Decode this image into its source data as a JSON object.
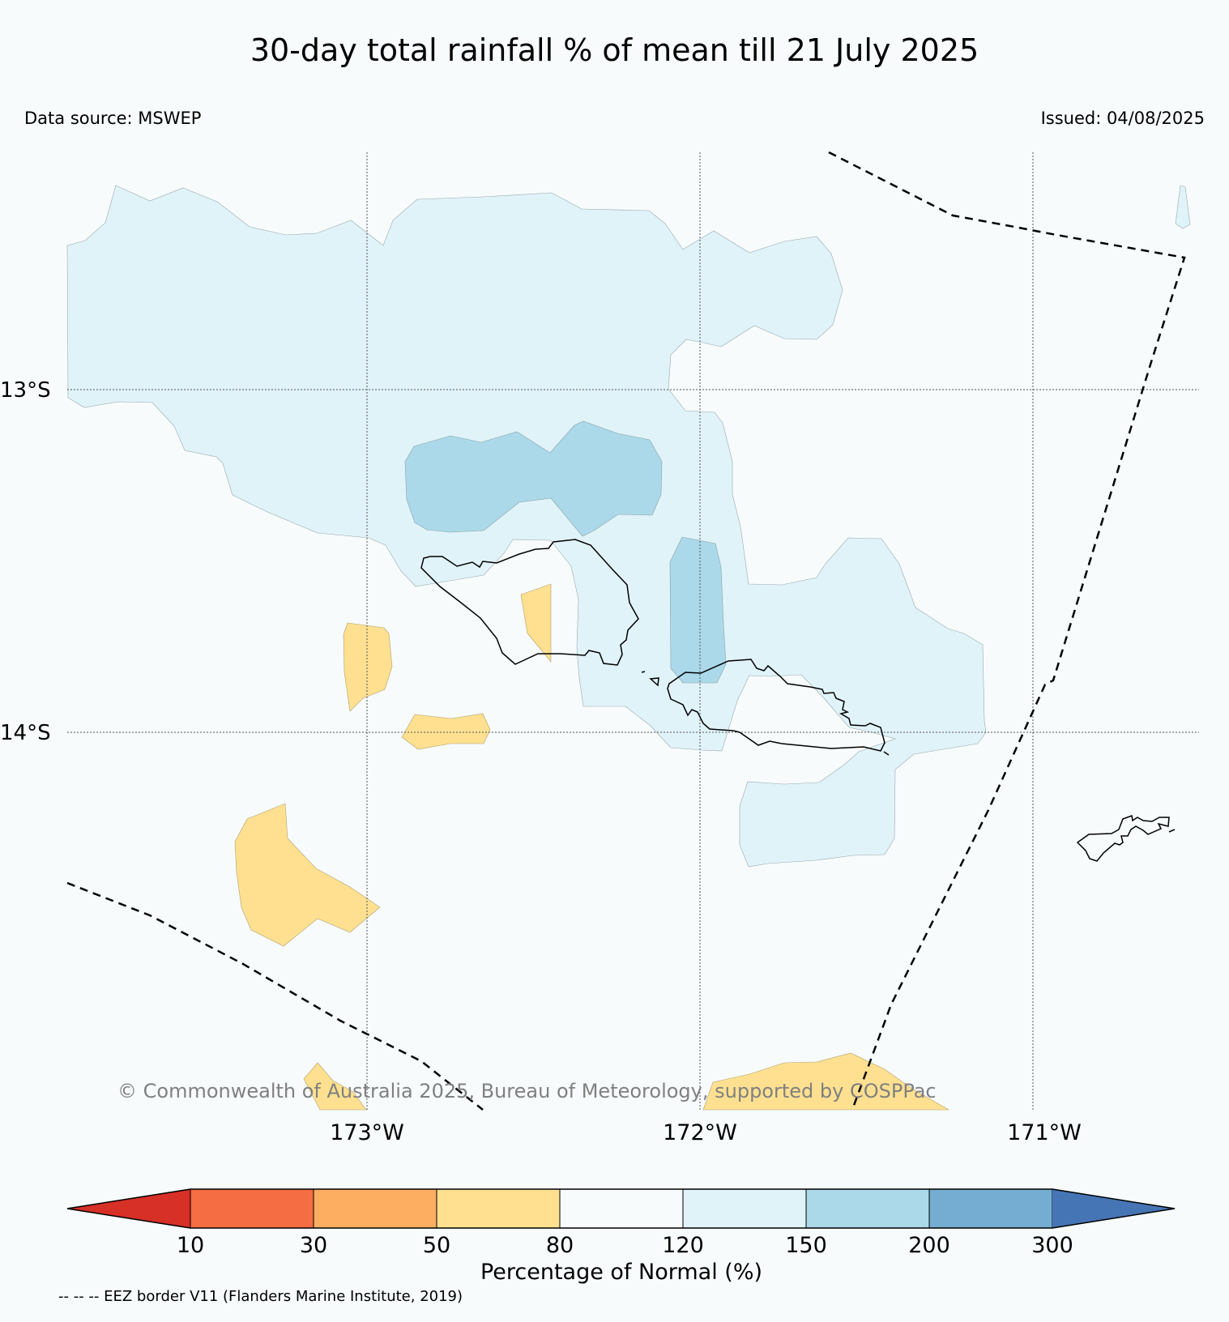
{
  "title": "30-day total rainfall % of mean till 21 July 2025",
  "data_source": "Data source: MSWEP",
  "issued": "Issued: 04/08/2025",
  "copyright": "© Commonwealth of Australia 2025, Bureau of Meteorology, supported by COSPPac",
  "eez_note": "-- -- -- EEZ border V11 (Flanders Marine Institute, 2019)",
  "gridlines": {
    "latitudes": [
      {
        "label": "13°S",
        "value": -13
      },
      {
        "label": "14°S",
        "value": -14
      }
    ],
    "longitudes": [
      {
        "label": "173°W",
        "value": -173
      },
      {
        "label": "172°W",
        "value": -172
      },
      {
        "label": "171°W",
        "value": -171
      }
    ]
  },
  "map_layers": {
    "rainfall_category_fill": [
      {
        "category": "120-150",
        "color": "#e0f3f8"
      },
      {
        "category": "150-200",
        "color": "#abd9e9"
      },
      {
        "category": "50-80",
        "color": "#fee090"
      }
    ],
    "coastline_color": "#000000",
    "eez_border_style": "dashed"
  },
  "colorbar": {
    "label": "Percentage of Normal (%)",
    "ticks": [
      "10",
      "30",
      "50",
      "80",
      "120",
      "150",
      "200",
      "300"
    ],
    "colors": [
      "#d73027",
      "#f46d43",
      "#fdae61",
      "#fee090",
      "#f7fbfc",
      "#e0f3f8",
      "#abd9e9",
      "#74add1",
      "#4575b4"
    ],
    "extend": "both"
  }
}
